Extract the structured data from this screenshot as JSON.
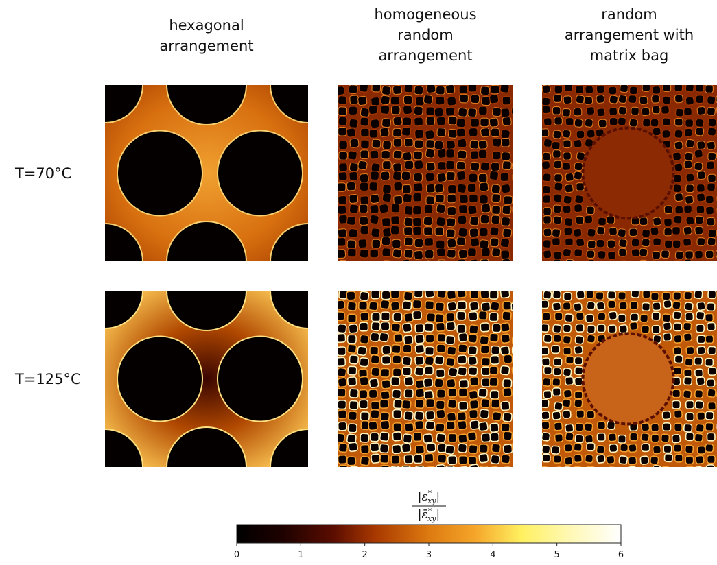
{
  "columns": [
    {
      "lines": [
        "hexagonal",
        "arrangement"
      ]
    },
    {
      "lines": [
        "homogeneous",
        "random",
        "arrangement"
      ]
    },
    {
      "lines": [
        "random",
        "arrangement with",
        "matrix bag"
      ]
    }
  ],
  "rows": [
    {
      "label": "T=70°C"
    },
    {
      "label": "T=125°C"
    }
  ],
  "colorbar": {
    "label": {
      "delimiter": "|",
      "numerator": {
        "symbol": "ε",
        "sup": "*",
        "sub": "xy"
      },
      "denominator": {
        "symbol": "ε̄",
        "sup": "*",
        "sub": "xy"
      }
    },
    "range": [
      0,
      6
    ],
    "ticks": [
      0,
      1,
      2,
      3,
      4,
      5,
      6
    ]
  }
}
